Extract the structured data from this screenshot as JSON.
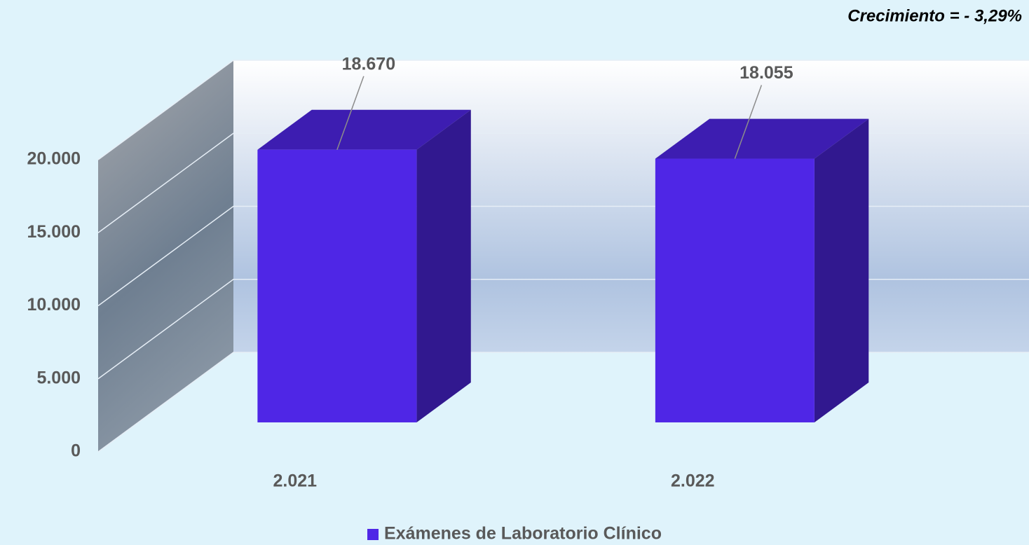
{
  "chart_data": {
    "type": "bar3d",
    "annotation": "Crecimiento = - 3,29%",
    "categories": [
      "2.021",
      "2.022"
    ],
    "series": [
      {
        "name": "Exámenes de Laboratorio Clínico",
        "color": "#4f26e6",
        "values": [
          18670,
          18055
        ],
        "value_labels": [
          "18.670",
          "18.055"
        ]
      }
    ],
    "ylim": [
      0,
      20000
    ],
    "yticks": [
      0,
      {
        "value": 5000,
        "label": "5.000"
      },
      {
        "value": 10000,
        "label": "10.000"
      },
      {
        "value": 15000,
        "label": "15.000"
      },
      {
        "value": 20000,
        "label": "20.000"
      }
    ],
    "grid": true,
    "legend": "bottom"
  }
}
